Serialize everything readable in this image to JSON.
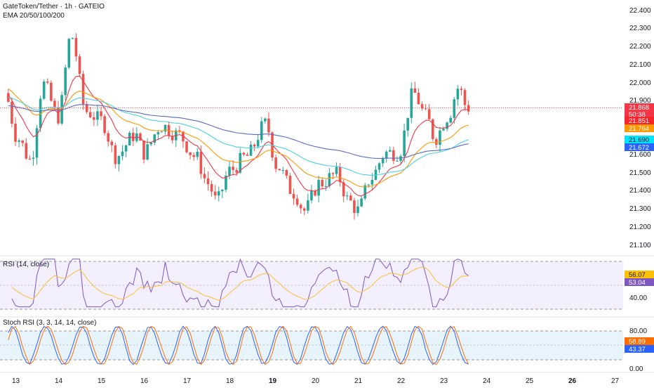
{
  "header": {
    "symbol": "GateToken/Tether · 1h · GATEIO",
    "indicator": "EMA 20/50/100/200"
  },
  "price_axis": {
    "ticks": [
      "22.400",
      "22.300",
      "22.200",
      "22.100",
      "22.000",
      "21.900",
      "21.600",
      "21.500",
      "21.400",
      "21.300",
      "21.200",
      "21.100"
    ],
    "badges": [
      {
        "text": "21.868",
        "color": "#f23645"
      },
      {
        "text": "50:38",
        "color": "#f23645"
      },
      {
        "text": "21.851",
        "color": "#f7252a"
      },
      {
        "text": "21.764",
        "color": "#ff9800"
      },
      {
        "text": "21.690",
        "color": "#00e5ff"
      },
      {
        "text": "21.672",
        "color": "#2962ff"
      }
    ]
  },
  "rsi": {
    "title": "RSI (14, close)",
    "ticks": [
      "40.00"
    ],
    "badges": [
      {
        "text": "56.07",
        "color": "#ffc107"
      },
      {
        "text": "53.04",
        "color": "#7e57c2"
      }
    ]
  },
  "stoch": {
    "title": "Stoch RSI (3, 3, 14, 14, close)",
    "ticks": [
      "80.00",
      "0.00"
    ],
    "badges": [
      {
        "text": "58.89",
        "color": "#ff6d00"
      },
      {
        "text": "43.37",
        "color": "#2962ff"
      }
    ]
  },
  "time_axis": {
    "labels": [
      "13",
      "14",
      "15",
      "16",
      "17",
      "18",
      "19",
      "20",
      "21",
      "22",
      "23",
      "24",
      "25",
      "26",
      "27"
    ],
    "bold": [
      "19",
      "26"
    ]
  },
  "colors": {
    "up": "#26a69a",
    "down": "#ef5350",
    "ema20": "#f23645",
    "ema50": "#ff9800",
    "ema100": "#4dd0e1",
    "ema200": "#5c6bc0",
    "rsi": "#7e57c2",
    "rsi_ma": "#fbc02d",
    "stoch_k": "#2962ff",
    "stoch_d": "#ff6d00"
  },
  "chart_data": {
    "type": "candlestick",
    "interval": "1h",
    "x_start_day": 13,
    "y_ticks": [
      21.1,
      21.2,
      21.3,
      21.4,
      21.5,
      21.6,
      21.9,
      22.0,
      22.1,
      22.2,
      22.3,
      22.4
    ],
    "current_price": 21.868,
    "anchors": [
      {
        "day": 12.85,
        "price": 21.95
      },
      {
        "day": 13.15,
        "price": 21.7
      },
      {
        "day": 13.45,
        "price": 21.58
      },
      {
        "day": 13.75,
        "price": 22.0
      },
      {
        "day": 14.1,
        "price": 21.82
      },
      {
        "day": 14.4,
        "price": 22.27
      },
      {
        "day": 14.75,
        "price": 21.85
      },
      {
        "day": 15.1,
        "price": 21.8
      },
      {
        "day": 15.45,
        "price": 21.6
      },
      {
        "day": 15.9,
        "price": 21.72
      },
      {
        "day": 16.1,
        "price": 21.62
      },
      {
        "day": 16.5,
        "price": 21.77
      },
      {
        "day": 16.9,
        "price": 21.72
      },
      {
        "day": 17.3,
        "price": 21.6
      },
      {
        "day": 17.6,
        "price": 21.45
      },
      {
        "day": 17.8,
        "price": 21.35
      },
      {
        "day": 18.1,
        "price": 21.52
      },
      {
        "day": 18.5,
        "price": 21.6
      },
      {
        "day": 18.95,
        "price": 21.78
      },
      {
        "day": 19.2,
        "price": 21.55
      },
      {
        "day": 19.6,
        "price": 21.4
      },
      {
        "day": 19.85,
        "price": 21.3
      },
      {
        "day": 20.2,
        "price": 21.45
      },
      {
        "day": 20.6,
        "price": 21.5
      },
      {
        "day": 20.9,
        "price": 21.35
      },
      {
        "day": 21.1,
        "price": 21.3
      },
      {
        "day": 21.4,
        "price": 21.48
      },
      {
        "day": 21.75,
        "price": 21.62
      },
      {
        "day": 22.05,
        "price": 21.62
      },
      {
        "day": 22.4,
        "price": 21.95
      },
      {
        "day": 22.7,
        "price": 21.82
      },
      {
        "day": 22.9,
        "price": 21.7
      },
      {
        "day": 23.2,
        "price": 21.82
      },
      {
        "day": 23.45,
        "price": 21.98
      },
      {
        "day": 23.65,
        "price": 21.87
      }
    ],
    "emas": [
      {
        "name": "EMA 20",
        "last": 21.851
      },
      {
        "name": "EMA 50",
        "last": 21.764
      },
      {
        "name": "EMA 100",
        "last": 21.69
      },
      {
        "name": "EMA 200",
        "last": 21.672
      }
    ],
    "rsi": {
      "period": 14,
      "last": 53.04,
      "ma_last": 56.07,
      "levels": [
        70,
        50,
        30
      ]
    },
    "stoch_rsi": {
      "k_last": 43.37,
      "d_last": 58.89,
      "levels": [
        80,
        20
      ]
    }
  }
}
